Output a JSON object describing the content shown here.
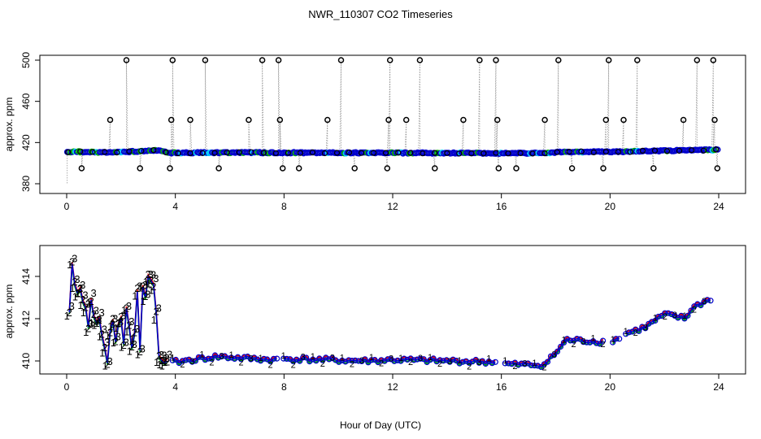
{
  "title": "NWR_110307  CO2 Timeseries",
  "xlabel": "Hour of Day (UTC)",
  "colors": {
    "raw_outline": "#000000",
    "blue": "#0000cc",
    "green": "#00aa00",
    "red": "#dd0000",
    "cyan": "#00ccff",
    "dotted": "#999999"
  },
  "chart_data": [
    {
      "type": "scatter",
      "panel": "top",
      "ylabel": "approx. ppm",
      "xlim": [
        0,
        24
      ],
      "ylim": [
        380,
        500
      ],
      "xticks": [
        0,
        4,
        8,
        12,
        16,
        20,
        24
      ],
      "yticks": [
        380,
        420,
        460,
        500
      ],
      "baseline_segments": [
        [
          0,
          410.6
        ],
        [
          0.4,
          411
        ],
        [
          1.6,
          410.2
        ],
        [
          2.6,
          411.5
        ],
        [
          3.3,
          412.5
        ],
        [
          3.8,
          410
        ],
        [
          6,
          410.2
        ],
        [
          10,
          410
        ],
        [
          14,
          409.8
        ],
        [
          16,
          409.6
        ],
        [
          17.5,
          409.8
        ],
        [
          18.3,
          410.8
        ],
        [
          20,
          411
        ],
        [
          22,
          412
        ],
        [
          24,
          413
        ]
      ],
      "spikes_high": [
        2.2,
        3.9,
        5.1,
        7.2,
        7.8,
        10.1,
        11.9,
        13.0,
        15.2,
        15.8,
        18.1,
        19.95,
        21.0,
        23.2,
        23.8
      ],
      "spikes_mid": [
        1.6,
        3.85,
        4.55,
        6.7,
        7.85,
        9.6,
        11.85,
        12.5,
        14.6,
        15.85,
        17.6,
        19.85,
        20.5,
        22.7,
        23.85
      ],
      "spikes_low": [
        0.55,
        2.7,
        3.8,
        5.6,
        7.95,
        8.55,
        10.6,
        11.8,
        13.55,
        15.9,
        16.55,
        18.6,
        19.75,
        21.6,
        23.95
      ],
      "spike_levels": {
        "high": 500,
        "mid": 442,
        "low": 395
      }
    },
    {
      "type": "line",
      "panel": "bottom",
      "ylabel": "approx. ppm",
      "xlim": [
        0,
        24
      ],
      "ylim": [
        409.4,
        415
      ],
      "xticks": [
        0,
        4,
        8,
        12,
        16,
        20,
        24
      ],
      "yticks": [
        410,
        412,
        414
      ],
      "series_labels": [
        "1",
        "2",
        "3"
      ],
      "x": [
        0.1,
        0.2,
        0.3,
        0.4,
        0.5,
        0.6,
        0.7,
        0.8,
        0.9,
        1.0,
        1.1,
        1.2,
        1.3,
        1.4,
        1.5,
        1.6,
        1.7,
        1.8,
        1.9,
        2.0,
        2.1,
        2.2,
        2.3,
        2.4,
        2.5,
        2.6,
        2.7,
        2.8,
        2.9,
        3.0,
        3.1,
        3.2,
        3.3,
        3.4,
        3.5,
        3.6,
        3.7
      ],
      "y": [
        412.3,
        414.6,
        413.6,
        413.2,
        413.4,
        412.8,
        412.5,
        411.6,
        412.9,
        412.1,
        411.8,
        412.0,
        411.2,
        410.6,
        409.9,
        411.4,
        411.9,
        410.9,
        411.7,
        412.0,
        410.8,
        412.5,
        411.6,
        410.6,
        411.3,
        413.3,
        410.5,
        413.5,
        413.0,
        414.0,
        413.8,
        413.6,
        412.2,
        410.2,
        410.0,
        409.9,
        410.0
      ],
      "tail_segments": [
        [
          4.0,
          409.95
        ],
        [
          5.5,
          410.2
        ],
        [
          7.7,
          410.05
        ],
        [
          8.0,
          410.1
        ],
        [
          11.0,
          410.0
        ],
        [
          12.0,
          410.05
        ],
        [
          15.8,
          409.95
        ],
        [
          16.1,
          409.85
        ],
        [
          17.3,
          409.8
        ],
        [
          17.6,
          409.85
        ],
        [
          17.95,
          410.3
        ],
        [
          18.4,
          411.0
        ],
        [
          19.8,
          410.9
        ],
        [
          20.2,
          411.0
        ],
        [
          20.6,
          411.3
        ],
        [
          21.3,
          411.6
        ],
        [
          22.0,
          412.2
        ],
        [
          22.8,
          412.0
        ],
        [
          23.0,
          412.5
        ],
        [
          23.8,
          413.0
        ]
      ]
    }
  ]
}
